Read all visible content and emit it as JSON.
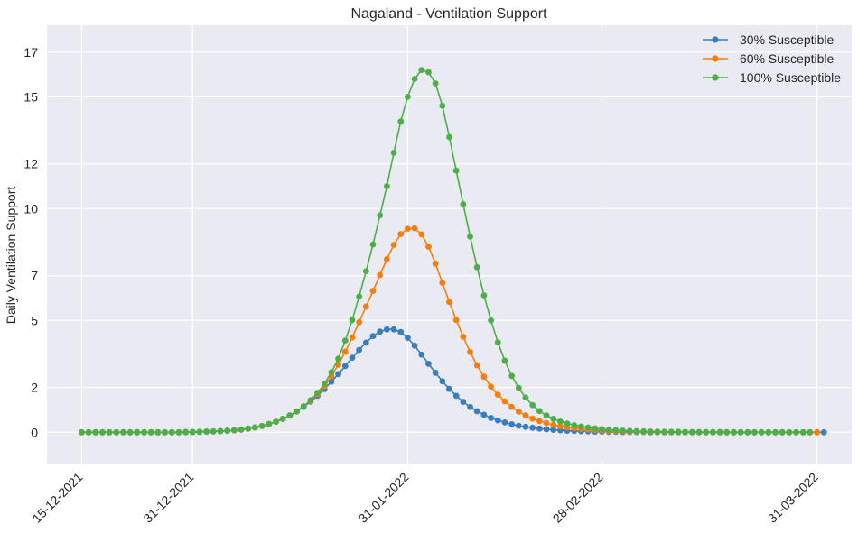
{
  "chart_data": {
    "type": "line",
    "title": "Nagaland - Ventilation Support",
    "xlabel": "",
    "ylabel": "Daily Ventilation Support",
    "x_start": "2021-12-15",
    "x_end": "2022-03-31",
    "xlim": [
      "2021-12-10",
      "2022-04-05"
    ],
    "ylim": [
      -1.4,
      18.2
    ],
    "yticks": [
      0,
      2,
      5,
      7,
      10,
      12,
      15,
      17
    ],
    "xticks": [
      "15-12-2021",
      "31-12-2021",
      "31-01-2022",
      "28-02-2022",
      "31-03-2022"
    ],
    "grid": true,
    "legend_position": "top-right",
    "series": [
      {
        "name": "30% Susceptible",
        "color": "#3a7dbe",
        "values": [
          0,
          0,
          0,
          0,
          0,
          0,
          0,
          0,
          0,
          0,
          0,
          0,
          0,
          0,
          0,
          0.01,
          0.01,
          0.02,
          0.03,
          0.04,
          0.05,
          0.07,
          0.09,
          0.12,
          0.16,
          0.21,
          0.28,
          0.37,
          0.47,
          0.6,
          0.75,
          0.93,
          1.13,
          1.37,
          1.63,
          1.93,
          2.26,
          2.6,
          2.96,
          3.33,
          3.68,
          4.01,
          4.3,
          4.5,
          4.6,
          4.6,
          4.48,
          4.22,
          3.87,
          3.47,
          3.06,
          2.66,
          2.28,
          1.94,
          1.63,
          1.36,
          1.13,
          0.94,
          0.78,
          0.64,
          0.53,
          0.44,
          0.36,
          0.29,
          0.24,
          0.2,
          0.16,
          0.13,
          0.11,
          0.09,
          0.07,
          0.06,
          0.05,
          0.04,
          0.03,
          0.03,
          0.02,
          0.02,
          0.01,
          0.01,
          0.01,
          0.01,
          0,
          0,
          0,
          0,
          0,
          0,
          0,
          0,
          0,
          0,
          0,
          0,
          0,
          0,
          0,
          0,
          0,
          0,
          0,
          0,
          0,
          0,
          0,
          0,
          0,
          0
        ]
      },
      {
        "name": "60% Susceptible",
        "color": "#f57f0e",
        "values": [
          0,
          0,
          0,
          0,
          0,
          0,
          0,
          0,
          0,
          0,
          0,
          0,
          0,
          0,
          0,
          0.01,
          0.01,
          0.02,
          0.03,
          0.04,
          0.05,
          0.07,
          0.09,
          0.12,
          0.16,
          0.21,
          0.28,
          0.37,
          0.47,
          0.6,
          0.75,
          0.93,
          1.15,
          1.4,
          1.7,
          2.06,
          2.5,
          3.02,
          3.6,
          4.24,
          4.92,
          5.62,
          6.32,
          7.03,
          7.74,
          8.38,
          8.86,
          9.1,
          9.12,
          8.85,
          8.3,
          7.54,
          6.68,
          5.83,
          5.02,
          4.27,
          3.59,
          2.99,
          2.48,
          2.04,
          1.68,
          1.38,
          1.13,
          0.92,
          0.75,
          0.61,
          0.5,
          0.41,
          0.33,
          0.27,
          0.22,
          0.18,
          0.15,
          0.12,
          0.1,
          0.08,
          0.06,
          0.05,
          0.04,
          0.03,
          0.03,
          0.02,
          0.02,
          0.01,
          0.01,
          0.01,
          0.01,
          0.01,
          0,
          0,
          0,
          0,
          0,
          0,
          0,
          0,
          0,
          0,
          0,
          0,
          0,
          0,
          0,
          0,
          0,
          0,
          0
        ]
      },
      {
        "name": "100% Susceptible",
        "color": "#4daf4a",
        "values": [
          0,
          0,
          0,
          0,
          0,
          0,
          0,
          0,
          0,
          0,
          0,
          0,
          0,
          0,
          0,
          0.01,
          0.01,
          0.02,
          0.03,
          0.04,
          0.05,
          0.07,
          0.09,
          0.12,
          0.16,
          0.21,
          0.28,
          0.37,
          0.47,
          0.6,
          0.75,
          0.93,
          1.16,
          1.43,
          1.76,
          2.17,
          2.68,
          3.29,
          4.1,
          5.02,
          6.07,
          7.2,
          8.4,
          9.7,
          11.0,
          12.5,
          13.9,
          15.0,
          15.8,
          16.2,
          16.1,
          15.6,
          14.6,
          13.2,
          11.7,
          10.2,
          8.75,
          7.38,
          6.12,
          5.0,
          4.02,
          3.2,
          2.52,
          1.98,
          1.55,
          1.21,
          0.95,
          0.75,
          0.6,
          0.48,
          0.39,
          0.32,
          0.26,
          0.21,
          0.17,
          0.14,
          0.11,
          0.09,
          0.07,
          0.06,
          0.05,
          0.04,
          0.03,
          0.03,
          0.02,
          0.02,
          0.02,
          0.01,
          0.01,
          0.01,
          0.01,
          0.01,
          0.01,
          0,
          0,
          0,
          0,
          0,
          0,
          0,
          0,
          0,
          0,
          0,
          0,
          0
        ]
      }
    ]
  }
}
